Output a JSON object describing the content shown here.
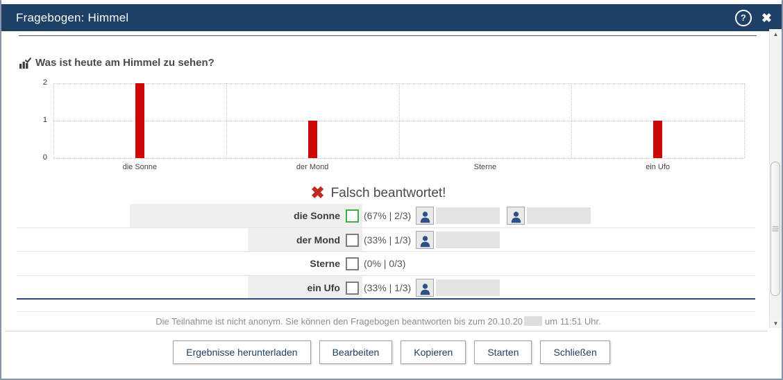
{
  "window": {
    "title": "Fragebogen: Himmel"
  },
  "titlebar": {
    "icons": {
      "help": "?",
      "close": "✖"
    }
  },
  "question": {
    "title": "Was ist heute am Himmel zu sehen?"
  },
  "chart_data": {
    "type": "bar",
    "categories": [
      "die Sonne",
      "der Mond",
      "Sterne",
      "ein Ufo"
    ],
    "values": [
      2,
      1,
      0,
      1
    ],
    "title": "Was ist heute am Himmel zu sehen?",
    "xlabel": "",
    "ylabel": "",
    "ylim": [
      0,
      2
    ],
    "yticks": [
      0,
      1,
      2
    ],
    "bar_color": "#cc0707",
    "grid": true,
    "grid_style": "dotted",
    "legend": false
  },
  "result_banner": {
    "icon": "✖",
    "text": "Falsch beantwortet!"
  },
  "answers": {
    "rows": [
      {
        "label": "die Sonne",
        "stats": "(67% | 2/3)",
        "percent": 67,
        "correct": true,
        "participants": 2
      },
      {
        "label": "der Mond",
        "stats": "(33% | 1/3)",
        "percent": 33,
        "correct": false,
        "participants": 1
      },
      {
        "label": "Sterne",
        "stats": "(0% | 0/3)",
        "percent": 0,
        "correct": false,
        "participants": 0
      },
      {
        "label": "ein Ufo",
        "stats": "(33% | 1/3)",
        "percent": 33,
        "correct": false,
        "participants": 1
      }
    ]
  },
  "footer": {
    "note_before": "Die Teilnahme ist nicht anonym. Sie können den Fragebogen beantworten bis zum 20.10.20",
    "note_after": "um 11:51 Uhr.",
    "buttons": [
      "Ergebnisse herunterladen",
      "Bearbeiten",
      "Kopieren",
      "Starten",
      "Schließen"
    ]
  },
  "colors": {
    "titlebar": "#1e3f66",
    "bar": "#cc0707",
    "wrong_icon": "#bf2a1d",
    "correct_checkbox": "#3cb043",
    "default_checkbox": "#7d7d7d",
    "person": "#2d5185",
    "button_text": "#1e3f66"
  }
}
